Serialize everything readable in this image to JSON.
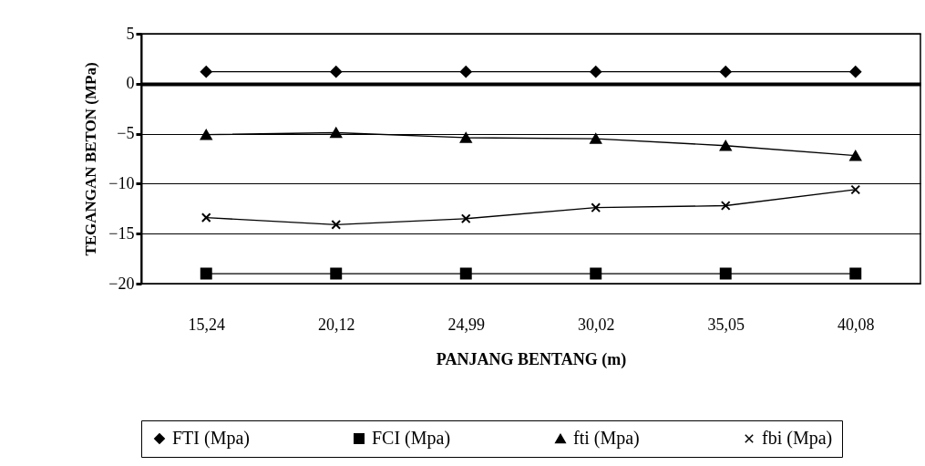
{
  "chart_data": {
    "type": "line",
    "xlabel": "PANJANG BENTANG (m)",
    "ylabel": "TEGANGAN BETON (MPa)",
    "categories": [
      "15,24",
      "20,12",
      "24,99",
      "30,02",
      "35,05",
      "40,08"
    ],
    "ylim": [
      -20,
      5
    ],
    "yticks": [
      -20,
      -15,
      -10,
      -5,
      0,
      5
    ],
    "grid": "y",
    "legend": "bottom",
    "series": [
      {
        "name": "FTI (Mpa)",
        "color": "#000000",
        "marker": "diamond",
        "values": [
          1.2,
          1.2,
          1.2,
          1.2,
          1.2,
          1.2
        ]
      },
      {
        "name": "FCI (Mpa)",
        "color": "#000000",
        "marker": "square",
        "values": [
          -19,
          -19,
          -19,
          -19,
          -19,
          -19
        ]
      },
      {
        "name": "fti (Mpa)",
        "color": "#000000",
        "marker": "triangle",
        "values": [
          -5.1,
          -4.9,
          -5.4,
          -5.5,
          -6.2,
          -7.2
        ]
      },
      {
        "name": "fbi (Mpa)",
        "color": "#000000",
        "marker": "cross",
        "values": [
          -13.4,
          -14.1,
          -13.5,
          -12.4,
          -12.2,
          -10.6
        ]
      }
    ]
  }
}
